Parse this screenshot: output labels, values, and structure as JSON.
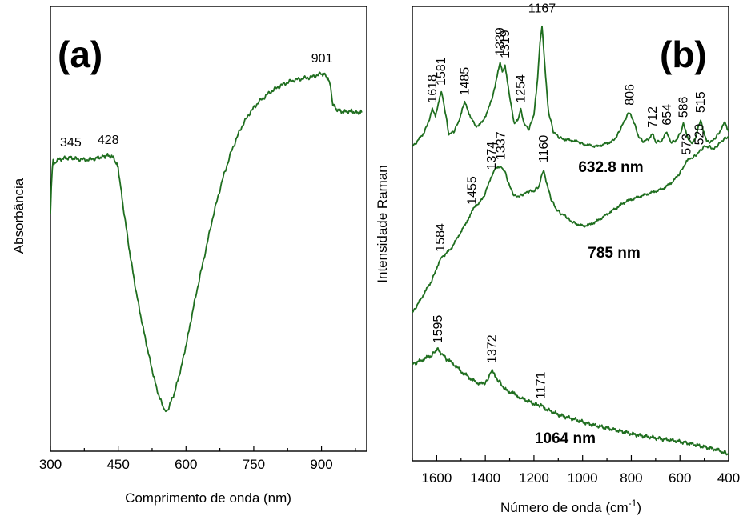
{
  "chart_data": [
    {
      "type": "line",
      "panel": "(a)",
      "xlabel": "Comprimento de onda (nm)",
      "ylabel": "Absorbância",
      "xlim": [
        300,
        1000
      ],
      "x_ticks": [
        "300",
        "450",
        "600",
        "750",
        "900"
      ],
      "y_ticks": [],
      "color": "#1f6e1f",
      "series": [
        {
          "x": [
            300,
            302,
            304,
            306,
            308,
            315,
            330,
            345,
            360,
            380,
            400,
            415,
            428,
            440,
            450,
            460,
            475,
            490,
            505,
            520,
            535,
            550,
            555,
            560,
            575,
            590,
            605,
            620,
            640,
            660,
            680,
            700,
            720,
            740,
            760,
            780,
            800,
            820,
            840,
            860,
            880,
            900,
            910,
            920,
            925,
            935,
            950,
            965,
            980,
            990
          ],
          "y": [
            0.64,
            0.72,
            0.78,
            0.8,
            0.79,
            0.805,
            0.81,
            0.812,
            0.808,
            0.805,
            0.81,
            0.815,
            0.82,
            0.812,
            0.78,
            0.67,
            0.52,
            0.39,
            0.28,
            0.18,
            0.09,
            0.03,
            0.02,
            0.025,
            0.08,
            0.16,
            0.26,
            0.37,
            0.5,
            0.63,
            0.74,
            0.83,
            0.9,
            0.95,
            0.985,
            1.01,
            1.03,
            1.045,
            1.055,
            1.06,
            1.065,
            1.075,
            1.07,
            1.04,
            0.98,
            0.96,
            0.955,
            0.958,
            0.952,
            0.955
          ]
        }
      ],
      "annotations": [
        {
          "text": "345",
          "x": 345
        },
        {
          "text": "428",
          "x": 428
        },
        {
          "text": "901",
          "x": 901
        }
      ]
    },
    {
      "type": "line",
      "panel": "(b)",
      "xlabel": "Número de onda (cm",
      "xlabel_sup": "-1",
      "xlabel_end": ")",
      "ylabel": "Intensidade Raman",
      "xlim": [
        1700,
        400
      ],
      "x_ticks": [
        "1600",
        "1400",
        "1200",
        "1000",
        "800",
        "600",
        "400"
      ],
      "y_ticks": [],
      "color": "#1f6e1f",
      "series": [
        {
          "name": "632.8 nm",
          "x": [
            1700,
            1680,
            1650,
            1630,
            1618,
            1605,
            1590,
            1581,
            1570,
            1550,
            1530,
            1510,
            1495,
            1485,
            1470,
            1440,
            1410,
            1380,
            1360,
            1345,
            1339,
            1330,
            1319,
            1300,
            1280,
            1265,
            1254,
            1240,
            1220,
            1200,
            1185,
            1175,
            1167,
            1155,
            1140,
            1120,
            1100,
            1080,
            1050,
            1020,
            1000,
            970,
            940,
            910,
            880,
            860,
            840,
            820,
            806,
            790,
            770,
            750,
            730,
            712,
            700,
            680,
            665,
            654,
            640,
            620,
            600,
            586,
            570,
            550,
            535,
            525,
            515,
            505,
            490,
            470,
            450,
            430,
            415,
            400
          ],
          "y": [
            0.78,
            0.8,
            0.84,
            0.89,
            0.93,
            0.9,
            0.97,
            1.0,
            0.95,
            0.83,
            0.84,
            0.88,
            0.93,
            0.96,
            0.92,
            0.86,
            0.88,
            0.95,
            1.02,
            1.1,
            1.12,
            1.08,
            1.11,
            0.98,
            0.87,
            0.89,
            0.93,
            0.87,
            0.85,
            0.91,
            1.05,
            1.2,
            1.27,
            1.1,
            0.92,
            0.84,
            0.82,
            0.81,
            0.805,
            0.8,
            0.79,
            0.785,
            0.78,
            0.79,
            0.8,
            0.82,
            0.86,
            0.9,
            0.92,
            0.88,
            0.82,
            0.8,
            0.81,
            0.83,
            0.8,
            0.8,
            0.82,
            0.84,
            0.8,
            0.8,
            0.83,
            0.87,
            0.82,
            0.79,
            0.82,
            0.86,
            0.89,
            0.85,
            0.8,
            0.8,
            0.82,
            0.85,
            0.88,
            0.84
          ]
        },
        {
          "name": "785 nm",
          "x": [
            1700,
            1680,
            1650,
            1620,
            1600,
            1584,
            1570,
            1540,
            1510,
            1480,
            1455,
            1440,
            1410,
            1390,
            1374,
            1360,
            1345,
            1337,
            1320,
            1300,
            1280,
            1260,
            1240,
            1220,
            1200,
            1180,
            1170,
            1160,
            1150,
            1130,
            1110,
            1090,
            1070,
            1050,
            1030,
            1000,
            970,
            940,
            910,
            880,
            850,
            820,
            790,
            760,
            730,
            700,
            670,
            640,
            610,
            590,
            573,
            560,
            540,
            520,
            500,
            480,
            460,
            440,
            420,
            400
          ],
          "y": [
            0.11,
            0.14,
            0.19,
            0.24,
            0.29,
            0.33,
            0.34,
            0.37,
            0.42,
            0.47,
            0.52,
            0.54,
            0.57,
            0.62,
            0.66,
            0.69,
            0.7,
            0.7,
            0.68,
            0.62,
            0.58,
            0.58,
            0.59,
            0.6,
            0.6,
            0.62,
            0.66,
            0.69,
            0.64,
            0.57,
            0.53,
            0.51,
            0.5,
            0.48,
            0.47,
            0.46,
            0.465,
            0.48,
            0.5,
            0.52,
            0.54,
            0.56,
            0.57,
            0.58,
            0.59,
            0.6,
            0.61,
            0.63,
            0.66,
            0.69,
            0.72,
            0.73,
            0.74,
            0.76,
            0.78,
            0.78,
            0.77,
            0.79,
            0.81,
            0.82
          ]
        },
        {
          "name": "1064 nm",
          "x": [
            1700,
            1680,
            1650,
            1620,
            1600,
            1595,
            1580,
            1560,
            1530,
            1500,
            1470,
            1440,
            1410,
            1390,
            1380,
            1372,
            1360,
            1340,
            1320,
            1290,
            1250,
            1200,
            1171,
            1150,
            1100,
            1050,
            1000,
            950,
            900,
            850,
            800,
            750,
            700,
            650,
            600,
            550,
            500,
            450,
            420,
            400
          ],
          "y": [
            0.255,
            0.26,
            0.27,
            0.28,
            0.295,
            0.295,
            0.285,
            0.27,
            0.255,
            0.235,
            0.22,
            0.205,
            0.2,
            0.21,
            0.225,
            0.24,
            0.22,
            0.205,
            0.185,
            0.175,
            0.16,
            0.145,
            0.14,
            0.13,
            0.115,
            0.105,
            0.095,
            0.085,
            0.078,
            0.07,
            0.062,
            0.055,
            0.05,
            0.045,
            0.04,
            0.033,
            0.025,
            0.018,
            0.01,
            0.005
          ]
        }
      ],
      "annotations": [
        {
          "text": "1618",
          "series": "632.8 nm",
          "x": 1618
        },
        {
          "text": "1581",
          "series": "632.8 nm",
          "x": 1581
        },
        {
          "text": "1485",
          "series": "632.8 nm",
          "x": 1485
        },
        {
          "text": "1339",
          "series": "632.8 nm",
          "x": 1339
        },
        {
          "text": "1319",
          "series": "632.8 nm",
          "x": 1319
        },
        {
          "text": "1254",
          "series": "632.8 nm",
          "x": 1254
        },
        {
          "text": "1167",
          "series": "632.8 nm",
          "x": 1167
        },
        {
          "text": "806",
          "series": "632.8 nm",
          "x": 806
        },
        {
          "text": "712",
          "series": "632.8 nm",
          "x": 712
        },
        {
          "text": "654",
          "series": "632.8 nm",
          "x": 654
        },
        {
          "text": "586",
          "series": "632.8 nm",
          "x": 586
        },
        {
          "text": "515",
          "series": "632.8 nm",
          "x": 515
        },
        {
          "text": "1584",
          "series": "785 nm",
          "x": 1584
        },
        {
          "text": "1455",
          "series": "785 nm",
          "x": 1455
        },
        {
          "text": "1374",
          "series": "785 nm",
          "x": 1374
        },
        {
          "text": "1337",
          "series": "785 nm",
          "x": 1337
        },
        {
          "text": "1160",
          "series": "785 nm",
          "x": 1160
        },
        {
          "text": "573",
          "series": "785 nm",
          "x": 573
        },
        {
          "text": "520",
          "series": "785 nm",
          "x": 520
        },
        {
          "text": "1595",
          "series": "1064 nm",
          "x": 1595
        },
        {
          "text": "1372",
          "series": "1064 nm",
          "x": 1372
        },
        {
          "text": "1171",
          "series": "1064 nm",
          "x": 1171
        }
      ]
    }
  ]
}
